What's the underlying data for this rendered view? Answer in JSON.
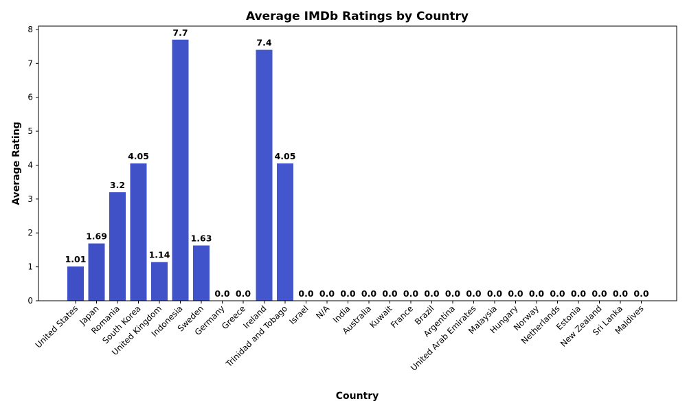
{
  "chart_data": {
    "type": "bar",
    "title": "Average IMDb Ratings by Country",
    "xlabel": "Country",
    "ylabel": "Average Rating",
    "ylim": [
      0,
      8.1
    ],
    "yticks": [
      0,
      1,
      2,
      3,
      4,
      5,
      6,
      7,
      8
    ],
    "grid": false,
    "bar_color_start": "#3f4fc6",
    "bar_color_end": "#4a63d8",
    "categories": [
      "United States",
      "Japan",
      "Romania",
      "South Korea",
      "United Kingdom",
      "Indonesia",
      "Sweden",
      "Germany",
      "Greece",
      "Ireland",
      "Trinidad and Tobago",
      "Israel",
      "N/A",
      "India",
      "Australia",
      "Kuwait",
      "France",
      "Brazil",
      "Argentina",
      "United Arab Emirates",
      "Malaysia",
      "Hungary",
      "Norway",
      "Netherlands",
      "Estonia",
      "New Zealand",
      "Sri Lanka",
      "Maldives"
    ],
    "values": [
      1.01,
      1.69,
      3.2,
      4.05,
      1.14,
      7.7,
      1.63,
      0.0,
      0.0,
      7.4,
      4.05,
      0.0,
      0.0,
      0.0,
      0.0,
      0.0,
      0.0,
      0.0,
      0.0,
      0.0,
      0.0,
      0.0,
      0.0,
      0.0,
      0.0,
      0.0,
      0.0,
      0.0
    ],
    "data_labels": [
      "1.01",
      "1.69",
      "3.2",
      "4.05",
      "1.14",
      "7.7",
      "1.63",
      "0.0",
      "0.0",
      "7.4",
      "4.05",
      "0.0",
      "0.0",
      "0.0",
      "0.0",
      "0.0",
      "0.0",
      "0.0",
      "0.0",
      "0.0",
      "0.0",
      "0.0",
      "0.0",
      "0.0",
      "0.0",
      "0.0",
      "0.0",
      "0.0"
    ]
  }
}
